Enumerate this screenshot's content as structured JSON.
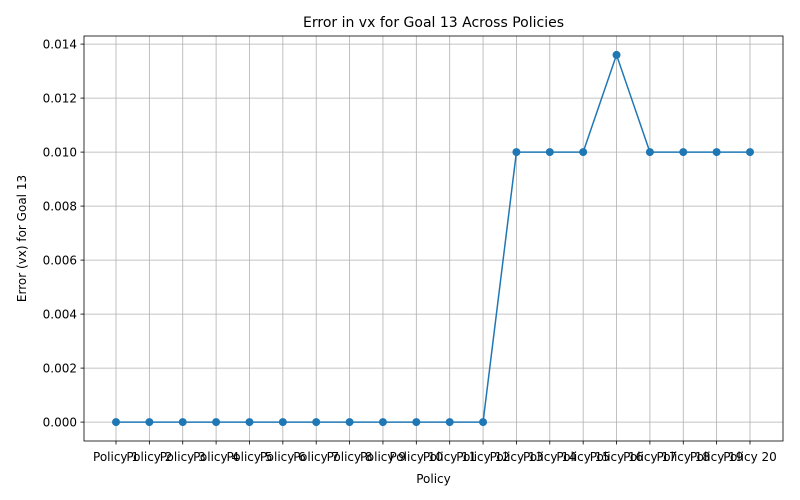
{
  "chart_data": {
    "type": "line",
    "title": "Error in vx for Goal 13 Across Policies",
    "xlabel": "Policy",
    "ylabel": "Error (vx) for Goal 13",
    "categories": [
      "Policy 1",
      "Policy 2",
      "Policy 3",
      "Policy 4",
      "Policy 5",
      "Policy 6",
      "Policy 7",
      "Policy 8",
      "Policy 9",
      "Policy 10",
      "Policy 11",
      "Policy 12",
      "Policy 13",
      "Policy 14",
      "Policy 15",
      "Policy 16",
      "Policy 17",
      "Policy 18",
      "Policy 19",
      "Policy 20"
    ],
    "series": [
      {
        "values": [
          0,
          0,
          0,
          0,
          0,
          0,
          0,
          0,
          0,
          0,
          0,
          0,
          0.01,
          0.01,
          0.01,
          0.0136,
          0.01,
          0.01,
          0.01,
          0.01
        ],
        "color": "#1f77b4",
        "marker": "circle"
      }
    ],
    "ylim": [
      -0.0007,
      0.0143
    ],
    "yticks": [
      "0.000",
      "0.002",
      "0.004",
      "0.006",
      "0.008",
      "0.010",
      "0.012",
      "0.014"
    ],
    "ytick_values": [
      0,
      0.002,
      0.004,
      0.006,
      0.008,
      0.01,
      0.012,
      0.014
    ],
    "grid": true
  }
}
